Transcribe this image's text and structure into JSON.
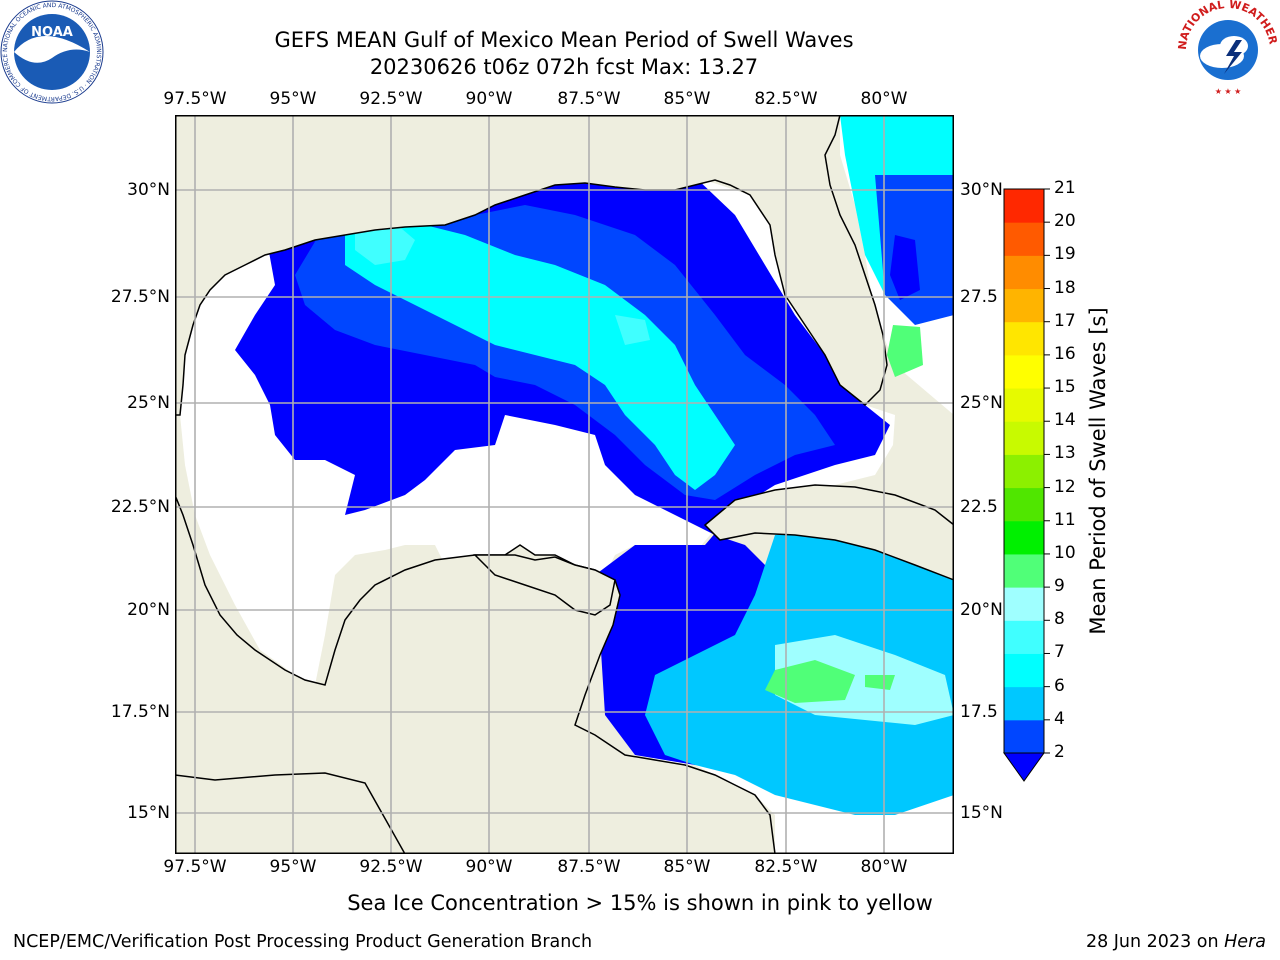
{
  "title": {
    "line1": "GEFS MEAN Gulf of Mexico Mean Period of Swell Waves",
    "line2": "20230626 t06z 072h fcst   Max: 13.27"
  },
  "map": {
    "lon_labels": [
      "97.5°W",
      "95°W",
      "92.5°W",
      "90°W",
      "87.5°W",
      "85°W",
      "82.5°W",
      "80°W"
    ],
    "lat_labels_left": [
      "30°N",
      "27.5°N",
      "25°N",
      "22.5°N",
      "20°N",
      "17.5°N",
      "15°N"
    ],
    "lat_labels_right": [
      "30°N",
      "27.5",
      "25°N",
      "22.5",
      "20°N",
      "17.5",
      "15°N"
    ],
    "extent": {
      "lon_min": -98,
      "lon_max": -78,
      "lat_min": 14,
      "lat_max": 32
    },
    "land_color": "#eeeedf",
    "no_data_color": "#ffffff",
    "grid_color": "#b0b0b0"
  },
  "colorbar": {
    "label": "Mean Period of Swell Waves [s]",
    "ticks": [
      "2",
      "4",
      "6",
      "7",
      "8",
      "9",
      "10",
      "11",
      "12",
      "13",
      "14",
      "15",
      "16",
      "17",
      "18",
      "19",
      "20",
      "21"
    ],
    "colors": [
      "#0046ff",
      "#00c8ff",
      "#00ffff",
      "#40ffff",
      "#9fffff",
      "#50ff78",
      "#00f000",
      "#50e600",
      "#8cf000",
      "#c8fa00",
      "#e6fa00",
      "#ffff00",
      "#ffe600",
      "#ffb400",
      "#ff8c00",
      "#ff5a00",
      "#ff2800",
      "#ff0000"
    ],
    "extend_color": "#0000ff"
  },
  "note": "Sea Ice Concentration > 15% is shown in pink to yellow",
  "footer": {
    "left": "NCEP/EMC/Verification Post Processing Product Generation Branch",
    "date": "28 Jun 2023 on ",
    "machine": "Hera"
  },
  "logos": {
    "noaa_text": "NOAA",
    "noaa_ring": "NATIONAL OCEANIC AND ATMOSPHERIC ADMINISTRATION · U.S. DEPARTMENT OF COMMERCE",
    "nws_ring": "NATIONAL WEATHER SERVICE"
  }
}
